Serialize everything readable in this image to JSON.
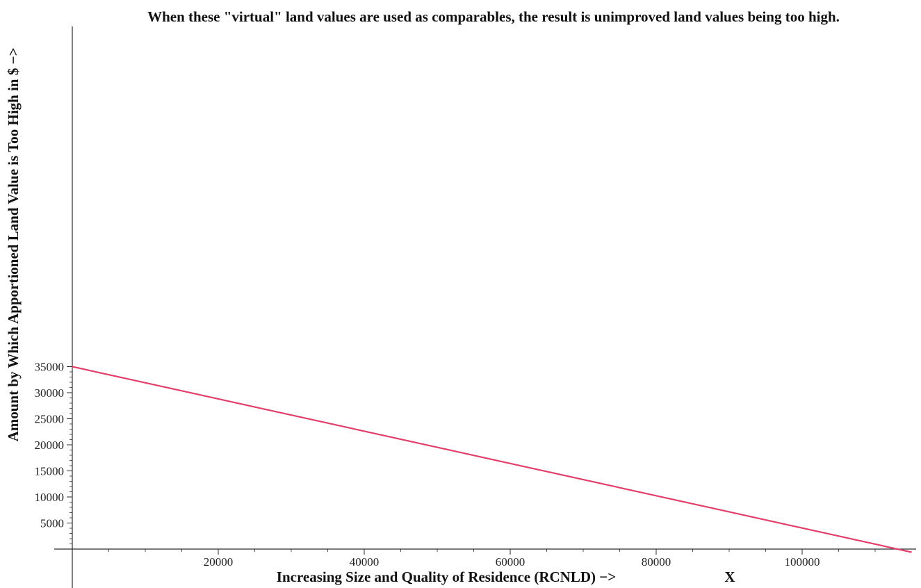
{
  "chart_data": {
    "type": "line",
    "title": "When these \"virtual\" land values are used as comparables, the result is unimproved land values being too high.",
    "xlabel": "Increasing Size and Quality of Residence (RCNLD) −>",
    "xlabel_extra": "X",
    "ylabel": "Amount by Which Apportioned Land Value is Too High in $  −>",
    "xlim": [
      0,
      115000
    ],
    "ylim": [
      0,
      35000
    ],
    "x_ticks": [
      20000,
      40000,
      60000,
      80000,
      100000
    ],
    "x_tick_labels": [
      "20000",
      "40000",
      "60000",
      "80000",
      "100000"
    ],
    "y_ticks": [
      5000,
      10000,
      15000,
      20000,
      25000,
      30000,
      35000
    ],
    "y_tick_labels": [
      "5000",
      "10000",
      "15000",
      "20000",
      "25000",
      "30000",
      "35000"
    ],
    "grid": false,
    "series": [
      {
        "color": "#e0406a",
        "x": [
          0,
          115000
        ],
        "y": [
          35000,
          -600
        ]
      }
    ]
  }
}
